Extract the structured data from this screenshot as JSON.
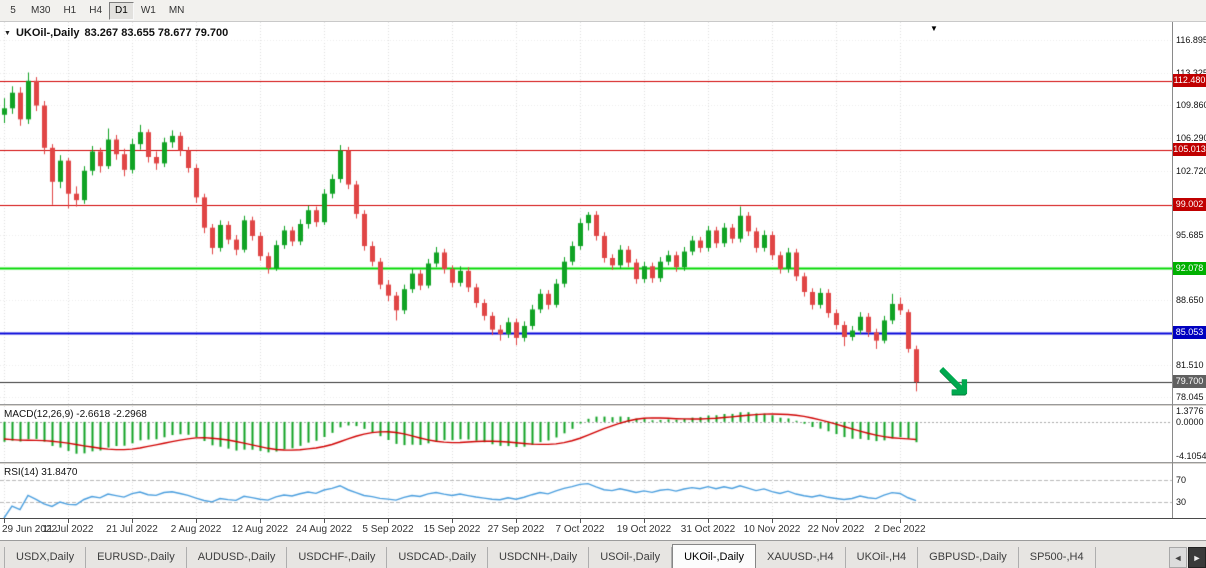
{
  "toolbar": {
    "timeframes": [
      "5",
      "M30",
      "H1",
      "H4",
      "D1",
      "W1",
      "MN"
    ],
    "active": "D1"
  },
  "chart": {
    "title_symbol": "UKOil-,Daily",
    "title_ohlc": "83.267 83.655 78.677 79.700"
  },
  "chart_data": {
    "type": "candlestick",
    "title": "UKOil-,Daily",
    "price_range": [
      77.3,
      118.9
    ],
    "y_axis_ticks": [
      116.895,
      113.325,
      109.86,
      106.29,
      102.72,
      95.685,
      88.65,
      81.51,
      78.045
    ],
    "x_tick_labels": [
      "29 Jun 2022",
      "11 Jul 2022",
      "21 Jul 2022",
      "2 Aug 2022",
      "12 Aug 2022",
      "24 Aug 2022",
      "5 Sep 2022",
      "15 Sep 2022",
      "27 Sep 2022",
      "7 Oct 2022",
      "19 Oct 2022",
      "31 Oct 2022",
      "10 Nov 2022",
      "22 Nov 2022",
      "2 Dec 2022"
    ],
    "x_tick_indices": [
      0,
      8,
      16,
      24,
      32,
      40,
      48,
      56,
      64,
      72,
      80,
      88,
      96,
      104,
      112
    ],
    "up_color": "#10a324",
    "down_color": "#e04545",
    "horizontal_lines": [
      {
        "price": 112.48,
        "color": "#d00000",
        "badge": "#c00000",
        "width": 1,
        "label": "112.480"
      },
      {
        "price": 105.013,
        "color": "#d00000",
        "badge": "#c00000",
        "width": 1,
        "label": "105.013"
      },
      {
        "price": 99.002,
        "color": "#d00000",
        "badge": "#c00000",
        "width": 1,
        "label": "99.002"
      },
      {
        "price": 92.078,
        "color": "#00d800",
        "badge": "#00b000",
        "width": 2,
        "label": "92.078"
      },
      {
        "price": 85.053,
        "color": "#0000d8",
        "badge": "#0000c0",
        "width": 2,
        "label": "85.053"
      },
      {
        "price": 79.7,
        "color": "#303030",
        "badge": "#606060",
        "width": 1,
        "label": "79.700"
      }
    ],
    "candles": [
      [
        108.8,
        110.6,
        107.9,
        109.5
      ],
      [
        109.5,
        111.9,
        108.9,
        111.2
      ],
      [
        111.2,
        111.8,
        107.6,
        108.3
      ],
      [
        108.3,
        113.4,
        107.8,
        112.5
      ],
      [
        112.5,
        112.9,
        109.2,
        109.8
      ],
      [
        109.8,
        110.3,
        104.5,
        105.2
      ],
      [
        105.2,
        105.6,
        99.0,
        101.5
      ],
      [
        101.5,
        104.4,
        100.8,
        103.8
      ],
      [
        103.8,
        104.1,
        98.6,
        100.2
      ],
      [
        100.2,
        101.0,
        98.8,
        99.5
      ],
      [
        99.5,
        103.2,
        99.1,
        102.7
      ],
      [
        102.7,
        105.4,
        102.2,
        104.8
      ],
      [
        104.8,
        105.2,
        102.5,
        103.2
      ],
      [
        103.2,
        107.3,
        102.9,
        106.1
      ],
      [
        106.1,
        106.6,
        103.9,
        104.5
      ],
      [
        104.5,
        105.1,
        102.1,
        102.8
      ],
      [
        102.8,
        106.2,
        102.4,
        105.6
      ],
      [
        105.6,
        107.7,
        105.0,
        106.9
      ],
      [
        106.9,
        107.2,
        103.6,
        104.2
      ],
      [
        104.2,
        104.8,
        102.8,
        103.5
      ],
      [
        103.5,
        106.3,
        103.1,
        105.8
      ],
      [
        105.8,
        107.1,
        105.2,
        106.5
      ],
      [
        106.5,
        106.9,
        104.3,
        104.9
      ],
      [
        104.9,
        105.3,
        102.5,
        103.0
      ],
      [
        103.0,
        103.4,
        99.2,
        99.8
      ],
      [
        99.8,
        100.2,
        95.9,
        96.5
      ],
      [
        96.5,
        96.9,
        93.6,
        94.3
      ],
      [
        94.3,
        97.3,
        93.9,
        96.8
      ],
      [
        96.8,
        97.2,
        94.7,
        95.2
      ],
      [
        95.2,
        95.7,
        93.5,
        94.1
      ],
      [
        94.1,
        97.8,
        93.8,
        97.3
      ],
      [
        97.3,
        97.7,
        95.1,
        95.6
      ],
      [
        95.6,
        96.0,
        92.9,
        93.4
      ],
      [
        93.4,
        93.8,
        91.5,
        92.1
      ],
      [
        92.1,
        95.1,
        91.8,
        94.6
      ],
      [
        94.6,
        96.7,
        94.2,
        96.2
      ],
      [
        96.2,
        96.6,
        94.5,
        95.0
      ],
      [
        95.0,
        97.4,
        94.6,
        96.9
      ],
      [
        96.9,
        98.9,
        96.4,
        98.4
      ],
      [
        98.4,
        98.8,
        96.6,
        97.1
      ],
      [
        97.1,
        100.7,
        96.8,
        100.2
      ],
      [
        100.2,
        102.3,
        99.7,
        101.8
      ],
      [
        101.8,
        105.5,
        101.4,
        104.9
      ],
      [
        104.9,
        105.3,
        100.7,
        101.2
      ],
      [
        101.2,
        101.6,
        97.5,
        98.0
      ],
      [
        98.0,
        98.4,
        94.0,
        94.5
      ],
      [
        94.5,
        95.0,
        92.3,
        92.8
      ],
      [
        92.8,
        93.2,
        89.8,
        90.3
      ],
      [
        90.3,
        90.8,
        88.5,
        89.1
      ],
      [
        89.1,
        89.5,
        86.4,
        87.5
      ],
      [
        87.5,
        90.3,
        87.1,
        89.8
      ],
      [
        89.8,
        92.0,
        89.4,
        91.5
      ],
      [
        91.5,
        91.9,
        89.7,
        90.2
      ],
      [
        90.2,
        93.1,
        89.9,
        92.6
      ],
      [
        92.6,
        94.4,
        92.2,
        93.8
      ],
      [
        93.8,
        94.2,
        91.5,
        92.0
      ],
      [
        92.0,
        92.4,
        90.0,
        90.5
      ],
      [
        90.5,
        92.3,
        90.1,
        91.8
      ],
      [
        91.8,
        92.2,
        89.5,
        90.0
      ],
      [
        90.0,
        90.4,
        87.8,
        88.3
      ],
      [
        88.3,
        88.7,
        86.4,
        86.9
      ],
      [
        86.9,
        87.3,
        84.8,
        85.4
      ],
      [
        85.4,
        85.9,
        84.2,
        84.9
      ],
      [
        84.9,
        86.7,
        84.5,
        86.2
      ],
      [
        86.2,
        86.6,
        83.7,
        84.5
      ],
      [
        84.5,
        86.3,
        84.1,
        85.8
      ],
      [
        85.8,
        88.1,
        85.4,
        87.6
      ],
      [
        87.6,
        89.8,
        87.2,
        89.3
      ],
      [
        89.3,
        89.7,
        87.6,
        88.1
      ],
      [
        88.1,
        90.9,
        87.8,
        90.4
      ],
      [
        90.4,
        93.3,
        90.0,
        92.8
      ],
      [
        92.8,
        95.0,
        92.4,
        94.5
      ],
      [
        94.5,
        97.5,
        94.1,
        97.0
      ],
      [
        97.0,
        98.2,
        96.2,
        97.9
      ],
      [
        97.9,
        98.3,
        95.1,
        95.6
      ],
      [
        95.6,
        96.0,
        92.7,
        93.2
      ],
      [
        93.2,
        93.6,
        91.9,
        92.4
      ],
      [
        92.4,
        94.6,
        92.0,
        94.1
      ],
      [
        94.1,
        94.5,
        92.2,
        92.7
      ],
      [
        92.7,
        93.1,
        90.4,
        90.9
      ],
      [
        90.9,
        92.8,
        90.5,
        92.3
      ],
      [
        92.3,
        92.7,
        90.5,
        91.0
      ],
      [
        91.0,
        93.3,
        90.6,
        92.8
      ],
      [
        92.8,
        94.0,
        92.4,
        93.5
      ],
      [
        93.5,
        93.9,
        91.7,
        92.2
      ],
      [
        92.2,
        94.4,
        91.8,
        93.9
      ],
      [
        93.9,
        95.6,
        93.5,
        95.1
      ],
      [
        95.1,
        95.5,
        93.8,
        94.3
      ],
      [
        94.3,
        96.7,
        93.9,
        96.2
      ],
      [
        96.2,
        96.6,
        94.3,
        94.8
      ],
      [
        94.8,
        97.0,
        94.4,
        96.5
      ],
      [
        96.5,
        96.9,
        94.8,
        95.3
      ],
      [
        95.3,
        98.8,
        94.9,
        97.8
      ],
      [
        97.8,
        98.2,
        95.6,
        96.1
      ],
      [
        96.1,
        96.5,
        93.8,
        94.3
      ],
      [
        94.3,
        96.2,
        93.9,
        95.7
      ],
      [
        95.7,
        96.1,
        93.0,
        93.5
      ],
      [
        93.5,
        93.9,
        91.5,
        92.0
      ],
      [
        92.0,
        94.3,
        91.6,
        93.8
      ],
      [
        93.8,
        94.2,
        90.7,
        91.2
      ],
      [
        91.2,
        91.6,
        89.0,
        89.5
      ],
      [
        89.5,
        89.9,
        87.6,
        88.1
      ],
      [
        88.1,
        89.9,
        87.7,
        89.4
      ],
      [
        89.4,
        89.8,
        86.7,
        87.2
      ],
      [
        87.2,
        87.6,
        85.4,
        85.9
      ],
      [
        85.9,
        86.3,
        83.6,
        84.6
      ],
      [
        84.6,
        85.8,
        84.2,
        85.3
      ],
      [
        85.3,
        87.3,
        84.9,
        86.8
      ],
      [
        86.8,
        87.2,
        84.6,
        85.1
      ],
      [
        85.1,
        85.5,
        83.3,
        84.2
      ],
      [
        84.2,
        86.9,
        83.9,
        86.4
      ],
      [
        86.4,
        89.3,
        86.0,
        88.2
      ],
      [
        88.2,
        88.9,
        87.0,
        87.5
      ],
      [
        87.3,
        87.6,
        82.9,
        83.3
      ],
      [
        83.267,
        83.655,
        78.677,
        79.7
      ]
    ],
    "indicators": {
      "macd": {
        "label": "MACD(12,26,9) -2.6618 -2.2968",
        "params": [
          12,
          26,
          9
        ],
        "values_shown": [
          -2.6618,
          -2.2968
        ],
        "range": [
          -4.8,
          1.9
        ],
        "axis_values": [
          1.3776,
          0,
          -4.1054
        ],
        "axis_labels": [
          "1.3776",
          "0.0000",
          "-4.1054"
        ],
        "hist_color": "#10a324",
        "signal_color": "#d00000"
      },
      "rsi": {
        "label": "RSI(14) 31.8470",
        "period": 14,
        "value_shown": 31.847,
        "range": [
          0,
          100
        ],
        "levels": [
          70,
          30
        ],
        "line_color": "#4a9ede"
      }
    },
    "annotation_arrow": {
      "glyph": "↘",
      "color": "#00a94f"
    }
  },
  "tab_bar": {
    "tabs": [
      {
        "label": "USDX,Daily",
        "active": false
      },
      {
        "label": "EURUSD-,Daily",
        "active": false
      },
      {
        "label": "AUDUSD-,Daily",
        "active": false
      },
      {
        "label": "USDCHF-,Daily",
        "active": false
      },
      {
        "label": "USDCAD-,Daily",
        "active": false
      },
      {
        "label": "USDCNH-,Daily",
        "active": false
      },
      {
        "label": "USOil-,Daily",
        "active": false
      },
      {
        "label": "UKOil-,Daily",
        "active": true
      },
      {
        "label": "XAUUSD-,H4",
        "active": false
      },
      {
        "label": "UKOil-,H4",
        "active": false
      },
      {
        "label": "GBPUSD-,Daily",
        "active": false
      },
      {
        "label": "SP500-,H4",
        "active": false
      }
    ],
    "scroll_left_icon": "◄",
    "scroll_right_icon": "►"
  }
}
